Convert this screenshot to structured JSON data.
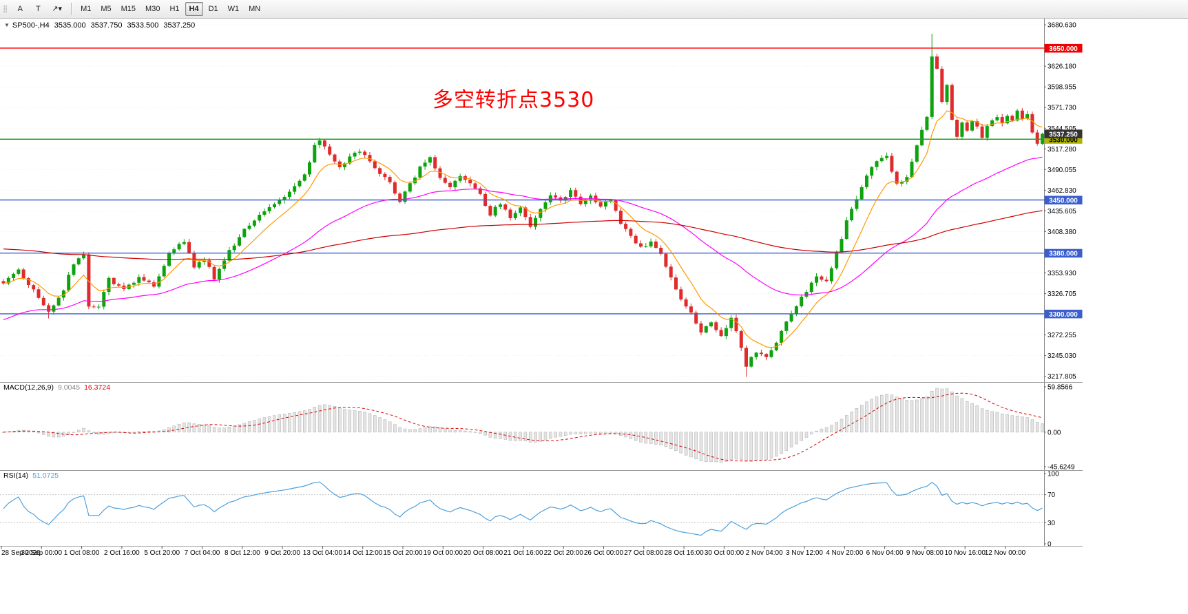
{
  "toolbar": {
    "tools": [
      {
        "name": "label-tool-button",
        "label": "A"
      },
      {
        "name": "text-tool-button",
        "label": "T"
      },
      {
        "name": "arrows-tool-dropdown",
        "label": "↗",
        "caret": "▾"
      }
    ],
    "timeframes": [
      "M1",
      "M5",
      "M15",
      "M30",
      "H1",
      "H4",
      "D1",
      "W1",
      "MN"
    ],
    "selected_timeframe": "H4"
  },
  "header": {
    "symbol": "SP500-,H4",
    "open": "3535.000",
    "high": "3537.750",
    "low": "3533.500",
    "close": "3537.250"
  },
  "annotation": {
    "text": "多空转折点3530",
    "color": "#FF0000"
  },
  "price_axis": {
    "min": 3212,
    "max": 3688,
    "labels": [
      3680.63,
      3626.18,
      3598.955,
      3571.73,
      3544.505,
      3517.28,
      3490.055,
      3462.83,
      3435.605,
      3408.38,
      3353.93,
      3326.705,
      3272.255,
      3245.03,
      3217.805
    ]
  },
  "level_lines": [
    {
      "price": 3650,
      "label": "3650.000",
      "color": "#FF0000",
      "badge_bg": "#F00000",
      "text_color": "#FFFFFF",
      "width": 1.5
    },
    {
      "price": 3530,
      "label": "3530.000",
      "color": "#22A022",
      "badge_bg": "#AFB400",
      "text_color": "#000000",
      "width": 1.5
    },
    {
      "price": 3450,
      "label": "3450.000",
      "color": "#3A5FCD",
      "badge_bg": "#3A5FCD",
      "text_color": "#FFFFFF",
      "width": 1.4
    },
    {
      "price": 3380,
      "label": "3380.000",
      "color": "#3A5FCD",
      "badge_bg": "#3A5FCD",
      "text_color": "#FFFFFF",
      "width": 1.4
    },
    {
      "price": 3300,
      "label": "3300.000",
      "color": "#3A5FCD",
      "badge_bg": "#3A5FCD",
      "text_color": "#FFFFFF",
      "width": 1.4
    }
  ],
  "current_price": {
    "value": 3537.25,
    "label": "3537.250",
    "badge_bg": "#333333",
    "text_color": "#FFFFFF"
  },
  "colors": {
    "up": "#0EA30E",
    "down": "#DF2B2B",
    "grid": "#ECECEC",
    "separator": "#9C9C9C",
    "axis_line": "#8A8A8A",
    "axis_text": "#000000"
  },
  "chart_data": {
    "type": "candlestick",
    "symbol": "SP500-",
    "timeframe": "H4",
    "bars": 208,
    "ohlc_display": {
      "open": 3535.0,
      "high": 3537.75,
      "low": 3533.5,
      "close": 3537.25
    },
    "close_keyframes": [
      [
        0,
        3342
      ],
      [
        3,
        3356
      ],
      [
        6,
        3331
      ],
      [
        9,
        3302
      ],
      [
        12,
        3332
      ],
      [
        14,
        3366
      ],
      [
        16,
        3378
      ],
      [
        17,
        3312
      ],
      [
        19,
        3310
      ],
      [
        21,
        3346
      ],
      [
        24,
        3332
      ],
      [
        27,
        3347
      ],
      [
        30,
        3336
      ],
      [
        33,
        3380
      ],
      [
        35,
        3392
      ],
      [
        36,
        3396
      ],
      [
        38,
        3362
      ],
      [
        40,
        3372
      ],
      [
        42,
        3347
      ],
      [
        45,
        3382
      ],
      [
        48,
        3412
      ],
      [
        51,
        3431
      ],
      [
        54,
        3446
      ],
      [
        57,
        3461
      ],
      [
        60,
        3482
      ],
      [
        62,
        3520
      ],
      [
        63,
        3528
      ],
      [
        65,
        3511
      ],
      [
        67,
        3492
      ],
      [
        69,
        3506
      ],
      [
        71,
        3516
      ],
      [
        74,
        3492
      ],
      [
        77,
        3471
      ],
      [
        79,
        3449
      ],
      [
        81,
        3471
      ],
      [
        83,
        3492
      ],
      [
        85,
        3504
      ],
      [
        87,
        3481
      ],
      [
        89,
        3466
      ],
      [
        91,
        3481
      ],
      [
        93,
        3471
      ],
      [
        95,
        3456
      ],
      [
        97,
        3431
      ],
      [
        99,
        3446
      ],
      [
        101,
        3426
      ],
      [
        103,
        3441
      ],
      [
        105,
        3416
      ],
      [
        107,
        3436
      ],
      [
        109,
        3456
      ],
      [
        111,
        3451
      ],
      [
        113,
        3461
      ],
      [
        115,
        3446
      ],
      [
        117,
        3456
      ],
      [
        119,
        3441
      ],
      [
        121,
        3451
      ],
      [
        123,
        3421
      ],
      [
        125,
        3401
      ],
      [
        127,
        3386
      ],
      [
        129,
        3396
      ],
      [
        131,
        3381
      ],
      [
        133,
        3346
      ],
      [
        135,
        3321
      ],
      [
        137,
        3301
      ],
      [
        139,
        3276
      ],
      [
        141,
        3291
      ],
      [
        143,
        3271
      ],
      [
        145,
        3296
      ],
      [
        147,
        3256
      ],
      [
        148,
        3230
      ],
      [
        150,
        3251
      ],
      [
        152,
        3241
      ],
      [
        154,
        3261
      ],
      [
        156,
        3291
      ],
      [
        158,
        3311
      ],
      [
        160,
        3331
      ],
      [
        162,
        3351
      ],
      [
        164,
        3341
      ],
      [
        166,
        3381
      ],
      [
        168,
        3421
      ],
      [
        170,
        3451
      ],
      [
        172,
        3481
      ],
      [
        174,
        3501
      ],
      [
        176,
        3506
      ],
      [
        178,
        3471
      ],
      [
        180,
        3481
      ],
      [
        182,
        3521
      ],
      [
        184,
        3561
      ],
      [
        185,
        3641
      ],
      [
        186,
        3621
      ],
      [
        187,
        3581
      ],
      [
        188,
        3601
      ],
      [
        189,
        3556
      ],
      [
        190,
        3531
      ],
      [
        191,
        3551
      ],
      [
        192,
        3541
      ],
      [
        193,
        3556
      ],
      [
        194,
        3546
      ],
      [
        195,
        3531
      ],
      [
        196,
        3546
      ],
      [
        197,
        3556
      ],
      [
        198,
        3561
      ],
      [
        199,
        3551
      ],
      [
        200,
        3561
      ],
      [
        201,
        3556
      ],
      [
        202,
        3566
      ],
      [
        203,
        3556
      ],
      [
        204,
        3561
      ],
      [
        205,
        3541
      ],
      [
        206,
        3526
      ],
      [
        207,
        3537.25
      ]
    ],
    "wick_overrides": {
      "9": [
        null,
        3294
      ],
      "63": [
        3532,
        null
      ],
      "148": [
        null,
        3217
      ],
      "185": [
        3669,
        null
      ]
    },
    "ma": [
      {
        "name": "fast",
        "period": 9,
        "color": "#FF9900"
      },
      {
        "name": "mid",
        "period": 45,
        "init": 3290,
        "color": "#FF00FF"
      },
      {
        "name": "slow",
        "period": 180,
        "init": 3386,
        "color": "#CE0000"
      }
    ],
    "macd": {
      "label": "MACD(12,26,9)",
      "value": "9.0045",
      "signal_value": "16.3724",
      "value_color": "#8C8C8C",
      "range": [
        -45.6249,
        59.8566
      ],
      "axis_labels": [
        "59.8566",
        "0.00",
        "-45.6249"
      ],
      "hist_color": "#E4E4E4",
      "hist_stroke": "#A9A9A9",
      "signal_color": "#E00000"
    },
    "rsi": {
      "label": "RSI(14)",
      "value": "51.0725",
      "color": "#4C9FDC",
      "levels": [
        70,
        30
      ],
      "levels_color": "#C4C4C4",
      "axis_labels": [
        "100",
        "70",
        "30",
        "0"
      ]
    },
    "time_labels": [
      "28 Sep 2020",
      "30 Sep 00:00",
      "1 Oct 08:00",
      "2 Oct 16:00",
      "5 Oct 20:00",
      "7 Oct 04:00",
      "8 Oct 12:00",
      "9 Oct 20:00",
      "13 Oct 04:00",
      "14 Oct 12:00",
      "15 Oct 20:00",
      "19 Oct 00:00",
      "20 Oct 08:00",
      "21 Oct 16:00",
      "22 Oct 20:00",
      "26 Oct 00:00",
      "27 Oct 08:00",
      "28 Oct 16:00",
      "30 Oct 00:00",
      "2 Nov 04:00",
      "3 Nov 12:00",
      "4 Nov 20:00",
      "6 Nov 04:00",
      "9 Nov 08:00",
      "10 Nov 16:00",
      "12 Nov 00:00"
    ]
  }
}
